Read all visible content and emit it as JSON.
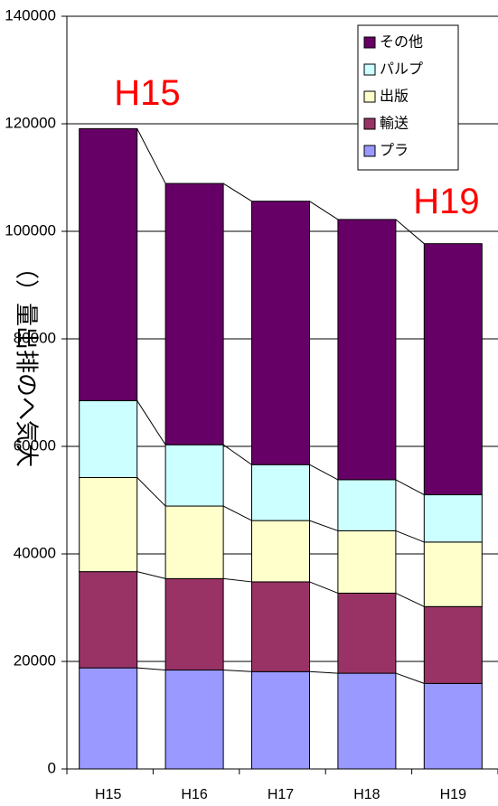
{
  "chart_data": {
    "type": "bar",
    "stacked": true,
    "categories": [
      "H15",
      "H16",
      "H17",
      "H18",
      "H19"
    ],
    "ylim": [
      0,
      140000
    ],
    "yticks": [
      0,
      20000,
      40000,
      60000,
      80000,
      100000,
      120000,
      140000
    ],
    "ylabel": "（）量出排のへ気大",
    "xlabel": "",
    "grid": true,
    "legend_position": "top-right",
    "series": [
      {
        "name": "プラ",
        "color": "#9999ff",
        "values": [
          18800,
          18400,
          18100,
          17800,
          15900
        ]
      },
      {
        "name": "輸送",
        "color": "#993366",
        "values": [
          17900,
          17000,
          16700,
          14900,
          14300
        ]
      },
      {
        "name": "出版",
        "color": "#ffffcc",
        "values": [
          17500,
          13500,
          11400,
          11600,
          12000
        ]
      },
      {
        "name": "パルプ",
        "color": "#ccffff",
        "values": [
          14300,
          11400,
          10400,
          9500,
          8800
        ]
      },
      {
        "name": "その他",
        "color": "#660066",
        "values": [
          50600,
          48600,
          49000,
          48400,
          46700
        ]
      }
    ],
    "annotations": [
      {
        "text": "H15",
        "category": "H15"
      },
      {
        "text": "H19",
        "category": "H19"
      }
    ]
  },
  "colors": {
    "annotation": "#ff0000",
    "gridline": "#000000",
    "bar_outline": "#000000"
  }
}
